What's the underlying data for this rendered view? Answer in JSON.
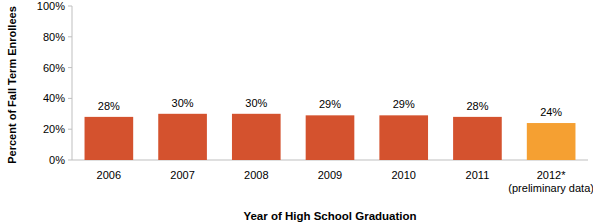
{
  "chart_data": {
    "type": "bar",
    "x_label": "Year of High School Graduation",
    "y_label": "Percent of Fall Term Enrollees",
    "categories": [
      "2006",
      "2007",
      "2008",
      "2009",
      "2010",
      "2011",
      "2012*\n(preliminary data)"
    ],
    "values": [
      28,
      30,
      30,
      29,
      29,
      28,
      24
    ],
    "value_labels": [
      "28%",
      "30%",
      "30%",
      "29%",
      "29%",
      "28%",
      "24%"
    ],
    "colors": [
      "#d4522e",
      "#d4522e",
      "#d4522e",
      "#d4522e",
      "#d4522e",
      "#d4522e",
      "#f5a032"
    ],
    "ylim": [
      0,
      100
    ],
    "yticks": [
      {
        "value": 0,
        "label": "0%"
      },
      {
        "value": 20,
        "label": "20%"
      },
      {
        "value": 40,
        "label": "40%"
      },
      {
        "value": 60,
        "label": "60%"
      },
      {
        "value": 80,
        "label": "80%"
      },
      {
        "value": 100,
        "label": "100%"
      }
    ],
    "grid": false,
    "data_labels": true
  }
}
